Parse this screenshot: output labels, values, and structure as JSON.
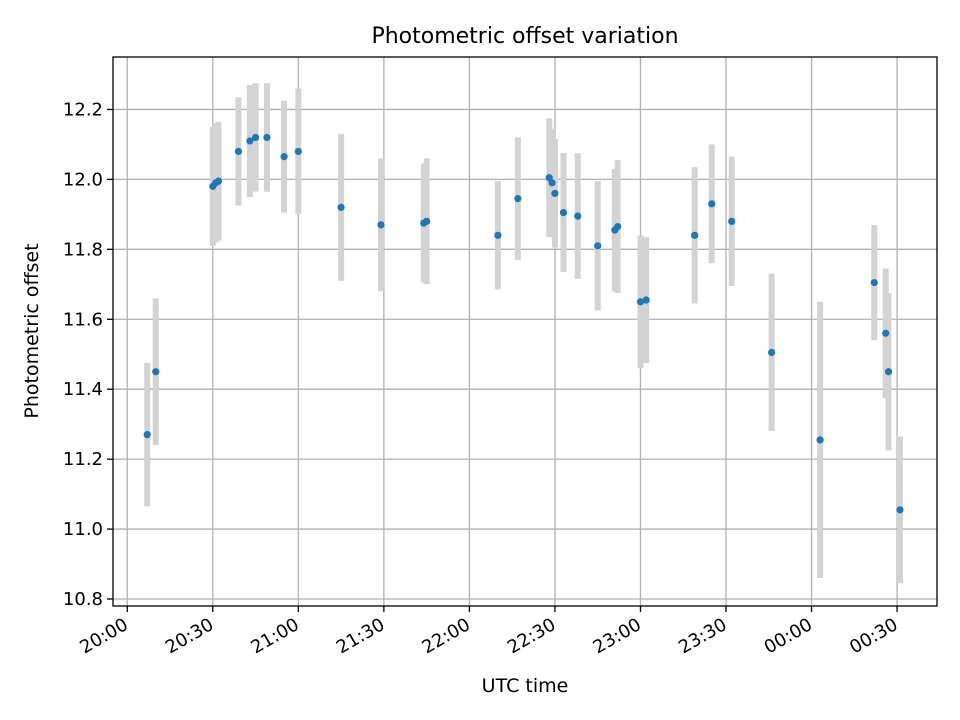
{
  "chart_data": {
    "type": "scatter",
    "title": "Photometric offset variation",
    "xlabel": "UTC time",
    "ylabel": "Photometric offset",
    "x_tick_labels": [
      "20:00",
      "20:30",
      "21:00",
      "21:30",
      "22:00",
      "22:30",
      "23:00",
      "23:30",
      "00:00",
      "00:30"
    ],
    "y_tick_labels": [
      "10.8",
      "11.0",
      "11.2",
      "11.4",
      "11.6",
      "11.8",
      "12.0",
      "12.2"
    ],
    "ylim": [
      10.78,
      12.35
    ],
    "xlim": [
      "19:55",
      "00:44"
    ],
    "grid": true,
    "colors": {
      "point": "#1f77b4",
      "errorbar": "#d3d3d3",
      "grid": "#b0b0b0"
    },
    "points": [
      {
        "time": "20:07",
        "y": 11.27,
        "yerr": 0.205
      },
      {
        "time": "20:10",
        "y": 11.45,
        "yerr": 0.21
      },
      {
        "time": "20:30",
        "y": 11.98,
        "yerr": 0.17
      },
      {
        "time": "20:31",
        "y": 11.99,
        "yerr": 0.17
      },
      {
        "time": "20:32",
        "y": 11.995,
        "yerr": 0.17
      },
      {
        "time": "20:39",
        "y": 12.08,
        "yerr": 0.155
      },
      {
        "time": "20:43",
        "y": 12.11,
        "yerr": 0.16
      },
      {
        "time": "20:45",
        "y": 12.12,
        "yerr": 0.155
      },
      {
        "time": "20:49",
        "y": 12.12,
        "yerr": 0.155
      },
      {
        "time": "20:55",
        "y": 12.065,
        "yerr": 0.16
      },
      {
        "time": "21:00",
        "y": 12.08,
        "yerr": 0.18
      },
      {
        "time": "21:15",
        "y": 11.92,
        "yerr": 0.21
      },
      {
        "time": "21:29",
        "y": 11.87,
        "yerr": 0.19
      },
      {
        "time": "21:44",
        "y": 11.875,
        "yerr": 0.17
      },
      {
        "time": "21:45",
        "y": 11.88,
        "yerr": 0.18
      },
      {
        "time": "22:10",
        "y": 11.84,
        "yerr": 0.155
      },
      {
        "time": "22:17",
        "y": 11.945,
        "yerr": 0.175
      },
      {
        "time": "22:28",
        "y": 12.005,
        "yerr": 0.17
      },
      {
        "time": "22:29",
        "y": 11.99,
        "yerr": 0.155
      },
      {
        "time": "22:30",
        "y": 11.96,
        "yerr": 0.155
      },
      {
        "time": "22:33",
        "y": 11.905,
        "yerr": 0.17
      },
      {
        "time": "22:38",
        "y": 11.895,
        "yerr": 0.18
      },
      {
        "time": "22:45",
        "y": 11.81,
        "yerr": 0.185
      },
      {
        "time": "22:51",
        "y": 11.855,
        "yerr": 0.175
      },
      {
        "time": "22:52",
        "y": 11.865,
        "yerr": 0.19
      },
      {
        "time": "23:00",
        "y": 11.65,
        "yerr": 0.19
      },
      {
        "time": "23:02",
        "y": 11.655,
        "yerr": 0.18
      },
      {
        "time": "23:19",
        "y": 11.84,
        "yerr": 0.195
      },
      {
        "time": "23:25",
        "y": 11.93,
        "yerr": 0.17
      },
      {
        "time": "23:32",
        "y": 11.88,
        "yerr": 0.185
      },
      {
        "time": "23:46",
        "y": 11.505,
        "yerr": 0.225
      },
      {
        "time": "00:03",
        "y": 11.255,
        "yerr": 0.395
      },
      {
        "time": "00:22",
        "y": 11.705,
        "yerr": 0.165
      },
      {
        "time": "00:26",
        "y": 11.56,
        "yerr": 0.185
      },
      {
        "time": "00:27",
        "y": 11.45,
        "yerr": 0.225
      },
      {
        "time": "00:31",
        "y": 11.055,
        "yerr": 0.21
      }
    ]
  }
}
